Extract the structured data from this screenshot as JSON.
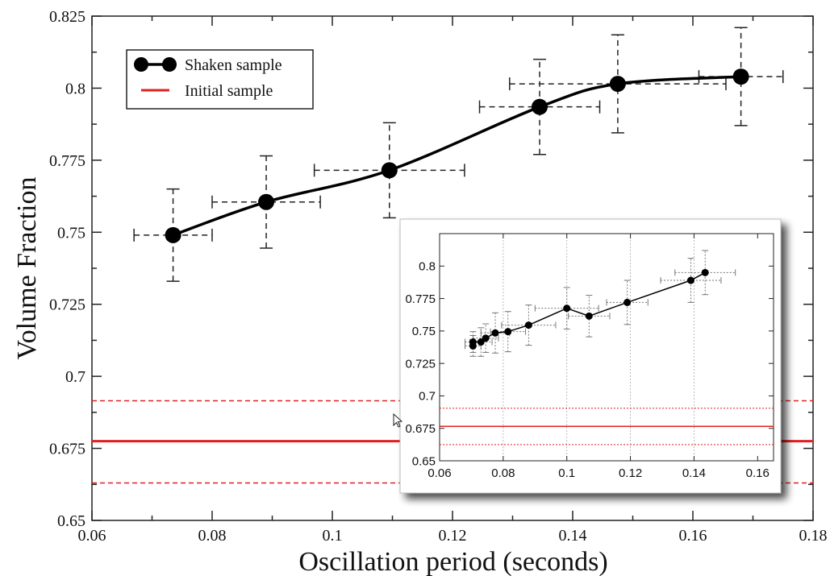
{
  "chart_data": [
    {
      "type": "line",
      "xlabel": "Oscillation period (seconds)",
      "ylabel": "Volume Fraction",
      "xlim": [
        0.06,
        0.18
      ],
      "ylim": [
        0.65,
        0.825
      ],
      "x_ticks": [
        "0.06",
        "0.08",
        "0.1",
        "0.12",
        "0.14",
        "0.16",
        "0.18"
      ],
      "y_ticks": [
        "0.65",
        "0.675",
        "0.7",
        "0.725",
        "0.75",
        "0.775",
        "0.8",
        "0.825"
      ],
      "legend": {
        "placement": "top-left",
        "entries": [
          "Shaken sample",
          "Initial sample"
        ]
      },
      "series": [
        {
          "name": "Shaken sample",
          "color": "#000000",
          "points": [
            {
              "x": 0.0735,
              "y": 0.749,
              "xerr": 0.0065,
              "yerr": 0.016
            },
            {
              "x": 0.089,
              "y": 0.7605,
              "xerr": 0.009,
              "yerr": 0.016
            },
            {
              "x": 0.1095,
              "y": 0.7715,
              "xerr": 0.0125,
              "yerr": 0.0165
            },
            {
              "x": 0.1345,
              "y": 0.7935,
              "xerr": 0.01,
              "yerr": 0.0165
            },
            {
              "x": 0.1475,
              "y": 0.8015,
              "xerr": 0.018,
              "yerr": 0.017
            },
            {
              "x": 0.168,
              "y": 0.804,
              "xerr": 0.007,
              "yerr": 0.017
            }
          ]
        },
        {
          "name": "Initial sample",
          "color": "#e02020",
          "y": 0.6775,
          "band": [
            0.663,
            0.6915
          ]
        }
      ]
    },
    {
      "type": "line",
      "xlim": [
        0.06,
        0.165
      ],
      "ylim": [
        0.65,
        0.825
      ],
      "x_ticks": [
        "0.06",
        "0.08",
        "0.1",
        "0.12",
        "0.14",
        "0.16"
      ],
      "y_ticks": [
        "0.65",
        "0.675",
        "0.7",
        "0.725",
        "0.75",
        "0.775",
        "0.8"
      ],
      "grid": "vertical",
      "series": [
        {
          "color": "#000000",
          "points": [
            {
              "x": 0.0705,
              "y": 0.7385,
              "xerr": 0.0025,
              "yerr": 0.008
            },
            {
              "x": 0.0705,
              "y": 0.7415,
              "xerr": 0.0025,
              "yerr": 0.008
            },
            {
              "x": 0.073,
              "y": 0.7415,
              "xerr": 0.0035,
              "yerr": 0.011
            },
            {
              "x": 0.0745,
              "y": 0.7445,
              "xerr": 0.004,
              "yerr": 0.011
            },
            {
              "x": 0.0775,
              "y": 0.7485,
              "xerr": 0.0045,
              "yerr": 0.0155
            },
            {
              "x": 0.0815,
              "y": 0.7495,
              "xerr": 0.0055,
              "yerr": 0.0155
            },
            {
              "x": 0.088,
              "y": 0.7545,
              "xerr": 0.0085,
              "yerr": 0.0155
            },
            {
              "x": 0.1,
              "y": 0.7675,
              "xerr": 0.01,
              "yerr": 0.016
            },
            {
              "x": 0.107,
              "y": 0.7615,
              "xerr": 0.0065,
              "yerr": 0.016
            },
            {
              "x": 0.119,
              "y": 0.772,
              "xerr": 0.0065,
              "yerr": 0.017
            },
            {
              "x": 0.139,
              "y": 0.789,
              "xerr": 0.0095,
              "yerr": 0.017
            },
            {
              "x": 0.1435,
              "y": 0.795,
              "xerr": 0.0095,
              "yerr": 0.017
            }
          ]
        },
        {
          "color": "#e02020",
          "y": 0.6765,
          "band": [
            0.6625,
            0.6905
          ]
        }
      ]
    }
  ]
}
